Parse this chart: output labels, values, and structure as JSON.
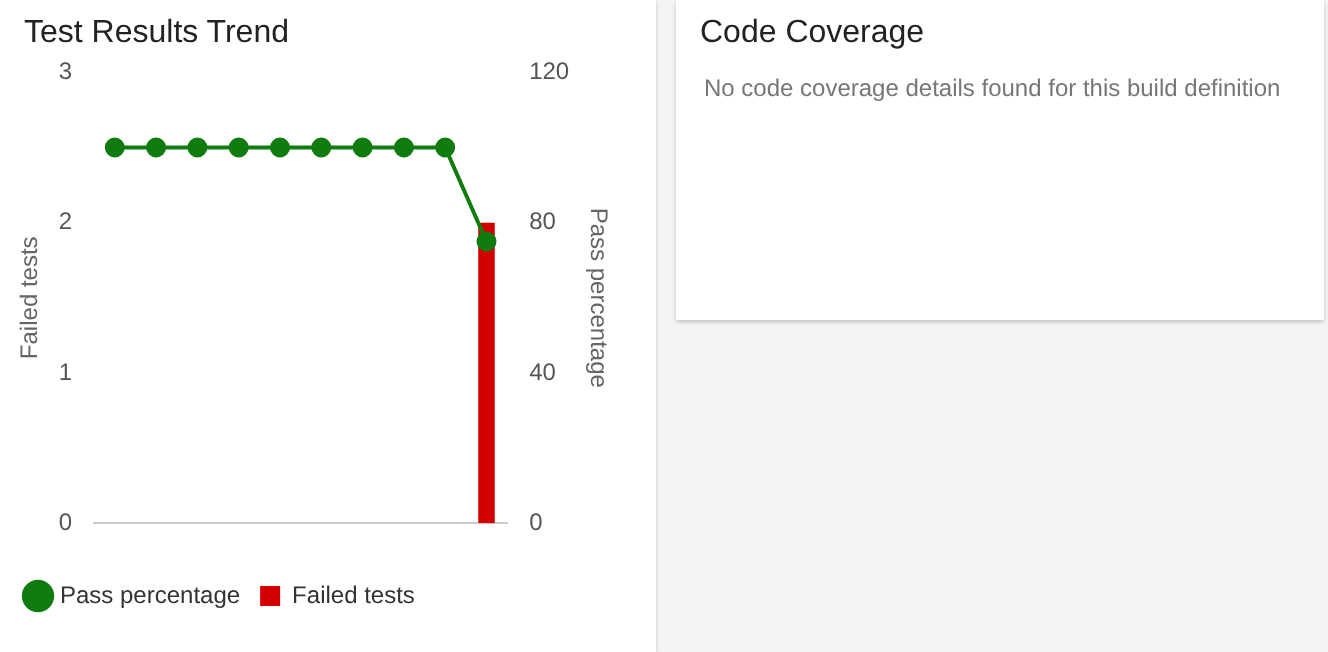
{
  "chart_data": [
    {
      "type": "bar",
      "title": "Test Results Trend",
      "ylabel": "Failed tests",
      "y2label": "Pass percentage",
      "categories": [
        null,
        null,
        null,
        null,
        null,
        null,
        null,
        null,
        null,
        null
      ],
      "series": [
        {
          "name": "Failed tests",
          "type": "bar",
          "color": "#d40000",
          "values": [
            0,
            0,
            0,
            0,
            0,
            0,
            0,
            0,
            0,
            2
          ]
        },
        {
          "name": "Pass percentage",
          "type": "line",
          "axis": "y2",
          "color": "#107c10",
          "values": [
            100,
            100,
            100,
            100,
            100,
            100,
            100,
            100,
            100,
            75
          ]
        }
      ],
      "ylim": [
        0,
        3
      ],
      "yticks": [
        0,
        1,
        2,
        3
      ],
      "y2lim": [
        0,
        120
      ],
      "y2ticks": [
        0,
        40,
        80,
        120
      ],
      "grid": false,
      "legend": "bottom left",
      "marker": "circle",
      "line_style": "solid"
    },
    {
      "type": "other",
      "title": "Code Coverage",
      "annotations": [
        "No code coverage details found for this build definition"
      ]
    }
  ]
}
